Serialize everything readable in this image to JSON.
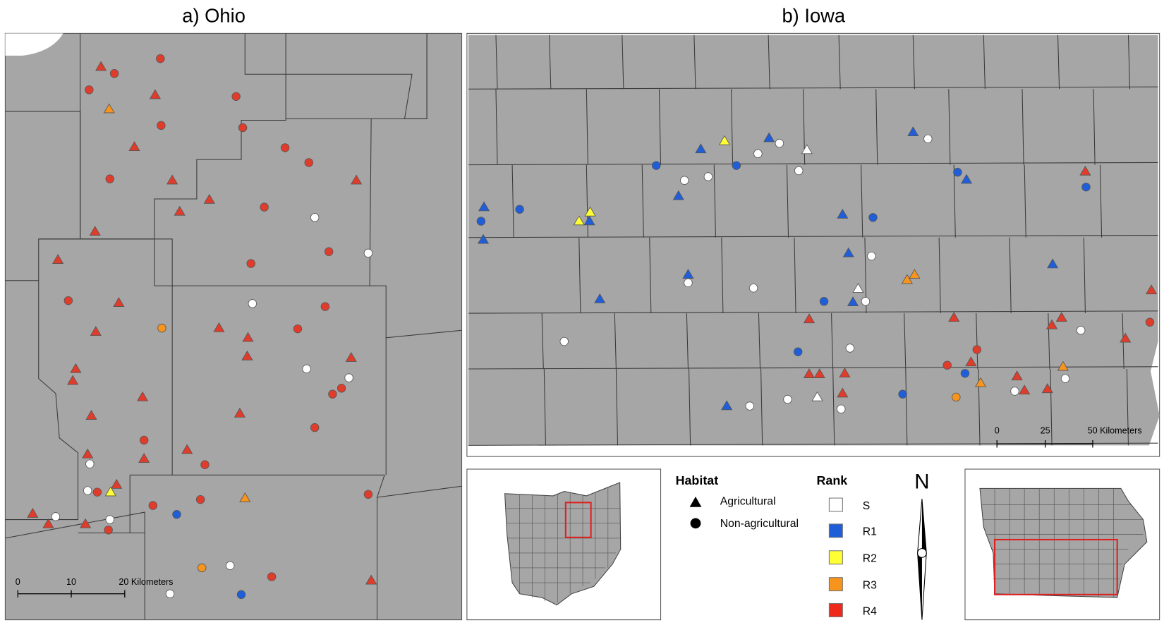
{
  "panels": [
    {
      "title": "a) Ohio",
      "scale_bar": [
        "0",
        "10",
        "20 Kilometers"
      ]
    },
    {
      "title": "b) Iowa",
      "scale_bar": [
        "0",
        "25",
        "50 Kilometers"
      ]
    }
  ],
  "legend": {
    "habitat": {
      "title": "Habitat",
      "items": [
        "Agricultural",
        "Non-agricultural"
      ]
    },
    "rank": {
      "title": "Rank",
      "items": [
        "S",
        "R1",
        "R2",
        "R3",
        "R4"
      ]
    }
  },
  "north_arrow": "N"
}
